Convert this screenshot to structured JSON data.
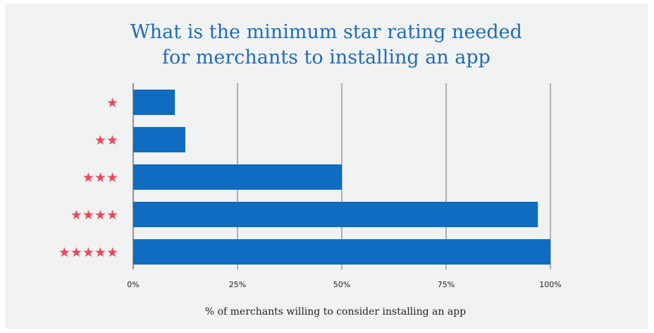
{
  "chart_data": {
    "type": "bar",
    "orientation": "horizontal",
    "title_lines": [
      "What is the minimum star rating needed",
      "for merchants to installing an app"
    ],
    "xlabel": "% of merchants willing to consider installing an app",
    "categories": [
      "★",
      "★★",
      "★★★",
      "★★★★",
      "★★★★★"
    ],
    "values": [
      10,
      12.5,
      50,
      97,
      100
    ],
    "xlim": [
      0,
      100
    ],
    "xticks": [
      0,
      25,
      50,
      75,
      100
    ],
    "xtick_labels": [
      "0%",
      "25%",
      "50%",
      "75%",
      "100%"
    ],
    "grid": "vertical",
    "colors": {
      "bar": "#0f6cc0",
      "star": "#e8485a",
      "title": "#1f6cb5",
      "grid": "#9a9a9a"
    }
  }
}
